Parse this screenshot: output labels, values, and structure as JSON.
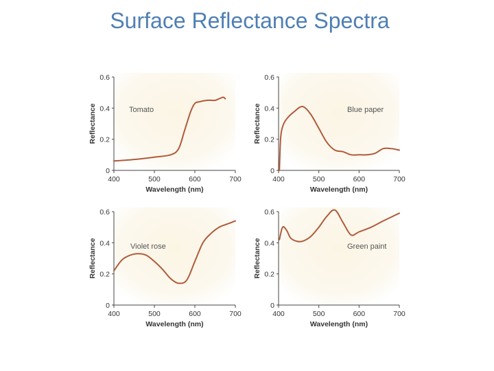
{
  "slide_title": "Surface Reflectance Spectra",
  "colors": {
    "title": "#4f7fb4",
    "curve": "#b05a3a",
    "panel_center": "#fbf5e4",
    "panel_edge": "#ffffff",
    "axis": "#444444"
  },
  "chart_data": [
    {
      "type": "line",
      "name": "Tomato",
      "xlabel": "Wavelength (nm)",
      "ylabel": "Reflectance",
      "xlim": [
        400,
        700
      ],
      "ylim": [
        0,
        0.6
      ],
      "xticks": [
        "400",
        "500",
        "600",
        "700"
      ],
      "yticks": [
        "0",
        "0.2",
        "0.4",
        "0.6"
      ],
      "grid": false,
      "x": [
        400,
        450,
        500,
        540,
        560,
        575,
        590,
        600,
        610,
        630,
        650,
        660,
        670,
        675
      ],
      "y": [
        0.06,
        0.07,
        0.085,
        0.1,
        0.14,
        0.26,
        0.38,
        0.43,
        0.44,
        0.45,
        0.45,
        0.46,
        0.47,
        0.46
      ]
    },
    {
      "type": "line",
      "name": "Blue paper",
      "xlabel": "Wavelength (nm)",
      "ylabel": "Reflectance",
      "xlim": [
        400,
        700
      ],
      "ylim": [
        0,
        0.6
      ],
      "xticks": [
        "400",
        "500",
        "600",
        "700"
      ],
      "yticks": [
        "0",
        "0.2",
        "0.4",
        "0.6"
      ],
      "grid": false,
      "x": [
        402,
        405,
        410,
        420,
        440,
        460,
        480,
        500,
        520,
        540,
        560,
        580,
        600,
        620,
        640,
        660,
        680,
        700
      ],
      "y": [
        0.0,
        0.2,
        0.28,
        0.33,
        0.38,
        0.41,
        0.36,
        0.27,
        0.18,
        0.13,
        0.12,
        0.1,
        0.1,
        0.1,
        0.11,
        0.14,
        0.14,
        0.13
      ]
    },
    {
      "type": "line",
      "name": "Violet rose",
      "xlabel": "Wavelength (nm)",
      "ylabel": "Reflectance",
      "xlim": [
        400,
        700
      ],
      "ylim": [
        0,
        0.6
      ],
      "xticks": [
        "400",
        "500",
        "600",
        "700"
      ],
      "yticks": [
        "0",
        "0.2",
        "0.4",
        "0.6"
      ],
      "grid": false,
      "x": [
        400,
        420,
        440,
        460,
        480,
        500,
        520,
        540,
        560,
        580,
        600,
        620,
        640,
        660,
        680,
        700
      ],
      "y": [
        0.22,
        0.29,
        0.32,
        0.33,
        0.32,
        0.28,
        0.23,
        0.17,
        0.14,
        0.16,
        0.28,
        0.4,
        0.46,
        0.5,
        0.52,
        0.54
      ]
    },
    {
      "type": "line",
      "name": "Green paint",
      "xlabel": "Wavelength (nm)",
      "ylabel": "Reflectance",
      "xlim": [
        400,
        700
      ],
      "ylim": [
        0,
        0.6
      ],
      "xticks": [
        "400",
        "500",
        "600",
        "700"
      ],
      "yticks": [
        "0",
        "0.2",
        "0.4",
        "0.6"
      ],
      "grid": false,
      "x": [
        402,
        410,
        420,
        430,
        445,
        460,
        480,
        500,
        520,
        540,
        560,
        580,
        600,
        630,
        660,
        700
      ],
      "y": [
        0.42,
        0.5,
        0.48,
        0.43,
        0.41,
        0.41,
        0.44,
        0.5,
        0.57,
        0.61,
        0.53,
        0.45,
        0.47,
        0.5,
        0.54,
        0.59
      ]
    }
  ]
}
